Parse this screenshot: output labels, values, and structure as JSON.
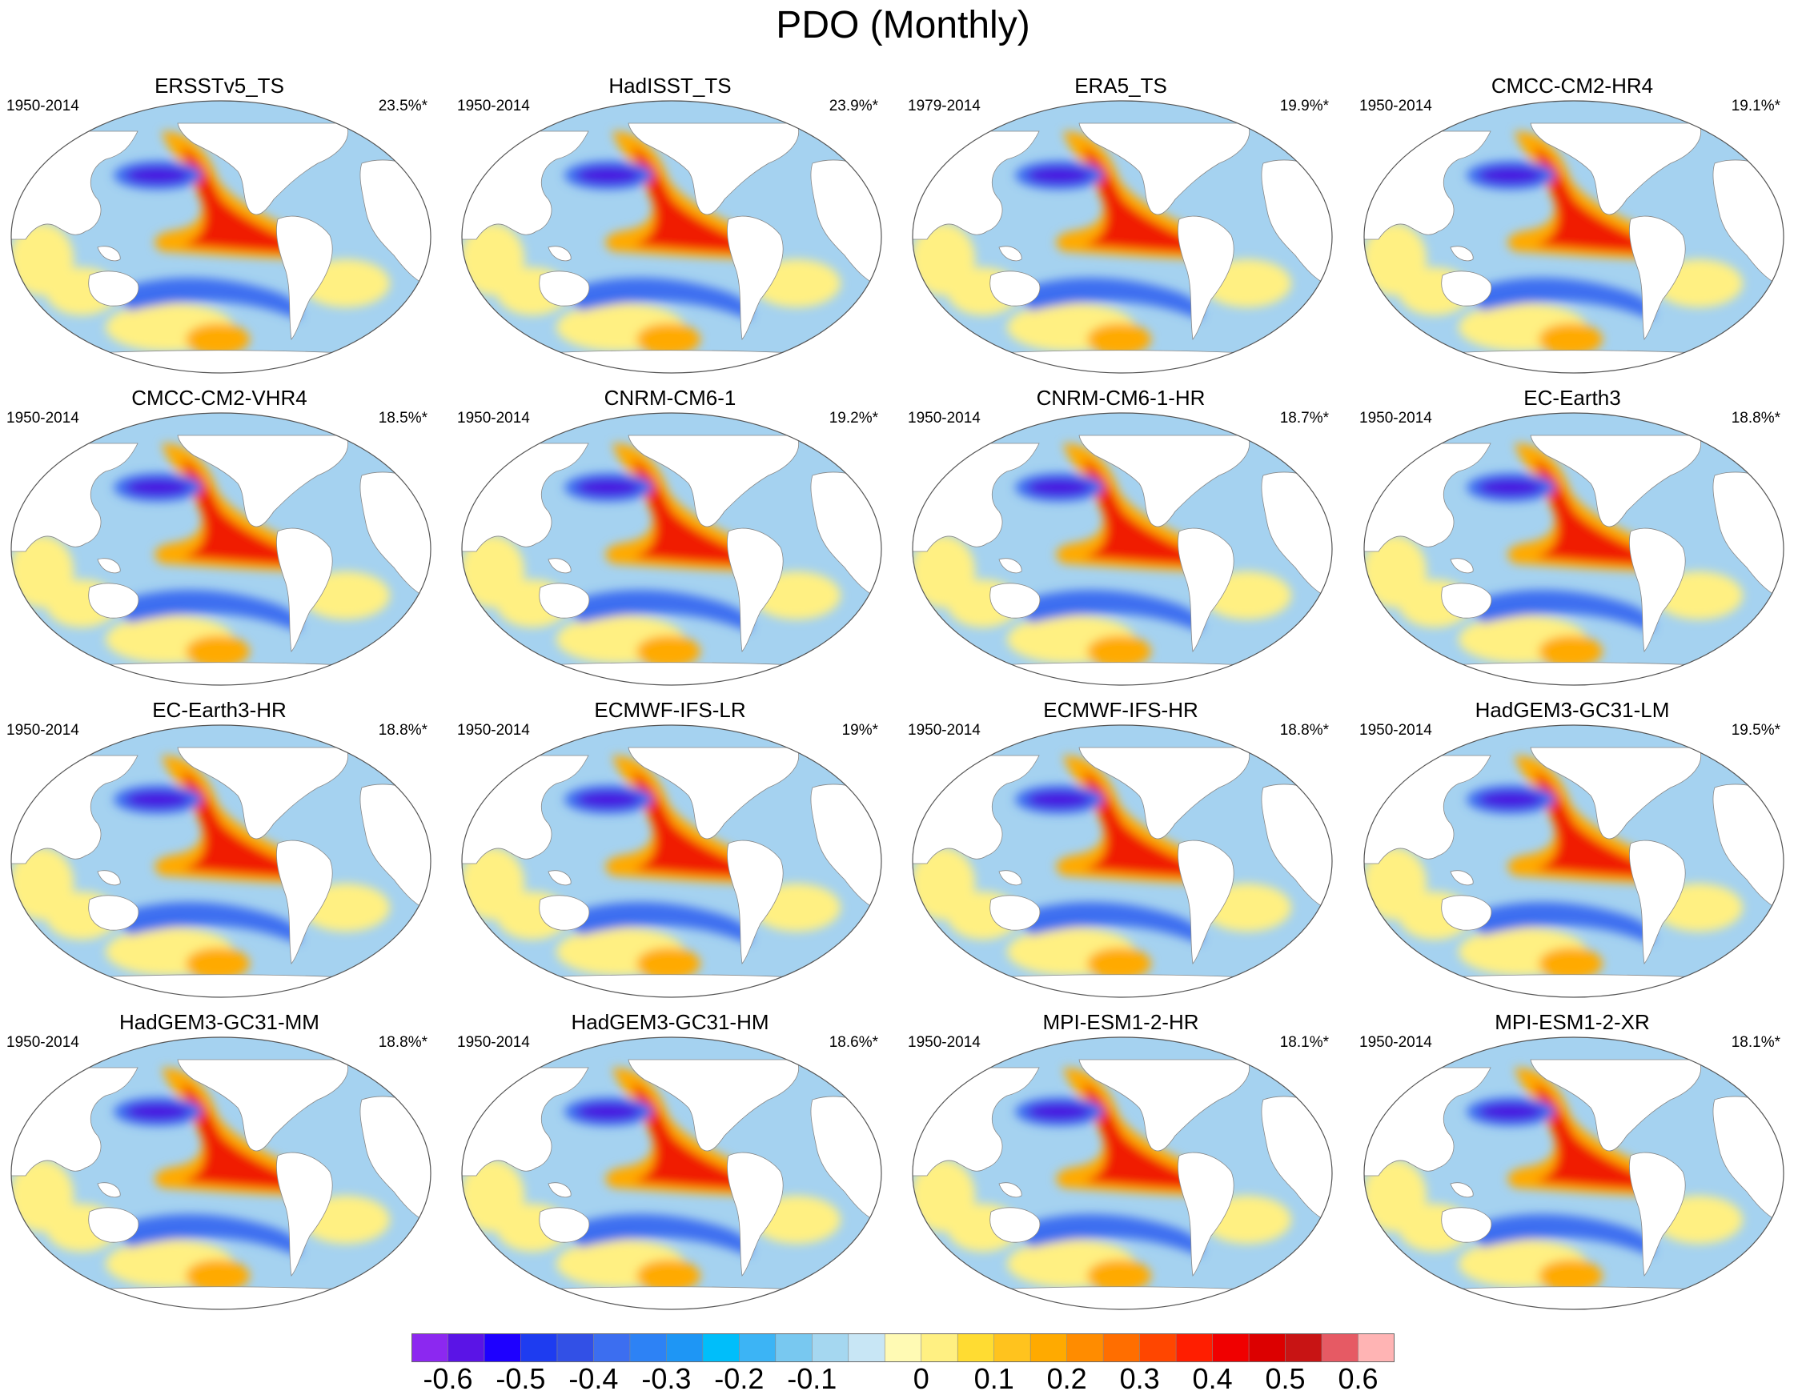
{
  "title": "PDO (Monthly)",
  "panels": [
    {
      "title": "ERSSTv5_TS",
      "period": "1950-2014",
      "pct": "23.5%*"
    },
    {
      "title": "HadISST_TS",
      "period": "1950-2014",
      "pct": "23.9%*"
    },
    {
      "title": "ERA5_TS",
      "period": "1979-2014",
      "pct": "19.9%*"
    },
    {
      "title": "CMCC-CM2-HR4",
      "period": "1950-2014",
      "pct": "19.1%*"
    },
    {
      "title": "CMCC-CM2-VHR4",
      "period": "1950-2014",
      "pct": "18.5%*"
    },
    {
      "title": "CNRM-CM6-1",
      "period": "1950-2014",
      "pct": "19.2%*"
    },
    {
      "title": "CNRM-CM6-1-HR",
      "period": "1950-2014",
      "pct": "18.7%*"
    },
    {
      "title": "EC-Earth3",
      "period": "1950-2014",
      "pct": "18.8%*"
    },
    {
      "title": "EC-Earth3-HR",
      "period": "1950-2014",
      "pct": "18.8%*"
    },
    {
      "title": "ECMWF-IFS-LR",
      "period": "1950-2014",
      "pct": "19%*"
    },
    {
      "title": "ECMWF-IFS-HR",
      "period": "1950-2014",
      "pct": "18.8%*"
    },
    {
      "title": "HadGEM3-GC31-LM",
      "period": "1950-2014",
      "pct": "19.5%*"
    },
    {
      "title": "HadGEM3-GC31-MM",
      "period": "1950-2014",
      "pct": "18.8%*"
    },
    {
      "title": "HadGEM3-GC31-HM",
      "period": "1950-2014",
      "pct": "18.6%*"
    },
    {
      "title": "MPI-ESM1-2-HR",
      "period": "1950-2014",
      "pct": "18.1%*"
    },
    {
      "title": "MPI-ESM1-2-XR",
      "period": "1950-2014",
      "pct": "18.1%*"
    }
  ],
  "colorbar": {
    "colors": [
      "#8c28f0",
      "#5a14e6",
      "#1e00ff",
      "#1e3cf0",
      "#3250e6",
      "#3c6ef0",
      "#2d82f5",
      "#1e96f5",
      "#00befa",
      "#3cb4f5",
      "#78c8f0",
      "#a5d7f0",
      "#c8e6f5",
      "#fffab4",
      "#fff082",
      "#ffdc32",
      "#ffc31e",
      "#ffaa00",
      "#ff8c00",
      "#ff6e00",
      "#ff4600",
      "#ff1e00",
      "#f00000",
      "#dc0000",
      "#c81414",
      "#e65a64",
      "#ffb4b4"
    ],
    "labels": [
      "-0.6",
      "-0.5",
      "-0.4",
      "-0.3",
      "-0.2",
      "-0.1",
      "0",
      "0.1",
      "0.2",
      "0.3",
      "0.4",
      "0.5",
      "0.6"
    ]
  },
  "map_palette": {
    "neg_strong": "#4614e0",
    "neg_mid": "#3c6ef0",
    "neg_weak": "#a5d2f0",
    "neutral_light": "#c8e6f5",
    "pos_weak": "#fff082",
    "pos_mid": "#ffaa00",
    "pos_strong": "#f01e00",
    "land": "#ffffff",
    "coast": "#888888"
  }
}
